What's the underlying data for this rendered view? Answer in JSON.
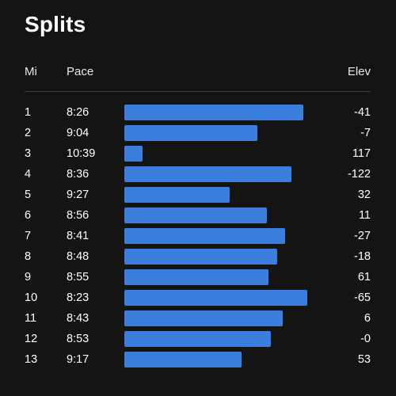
{
  "title": "Splits",
  "headers": {
    "mi": "Mi",
    "pace": "Pace",
    "elev": "Elev"
  },
  "bar_color": "#3a7fdd",
  "splits": [
    {
      "mi": "1",
      "pace": "8:26",
      "elev": "-41",
      "pace_seconds": 506
    },
    {
      "mi": "2",
      "pace": "9:04",
      "elev": "-7",
      "pace_seconds": 544
    },
    {
      "mi": "3",
      "pace": "10:39",
      "elev": "117",
      "pace_seconds": 639
    },
    {
      "mi": "4",
      "pace": "8:36",
      "elev": "-122",
      "pace_seconds": 516
    },
    {
      "mi": "5",
      "pace": "9:27",
      "elev": "32",
      "pace_seconds": 567
    },
    {
      "mi": "6",
      "pace": "8:56",
      "elev": "11",
      "pace_seconds": 536
    },
    {
      "mi": "7",
      "pace": "8:41",
      "elev": "-27",
      "pace_seconds": 521
    },
    {
      "mi": "8",
      "pace": "8:48",
      "elev": "-18",
      "pace_seconds": 528
    },
    {
      "mi": "9",
      "pace": "8:55",
      "elev": "61",
      "pace_seconds": 535
    },
    {
      "mi": "10",
      "pace": "8:23",
      "elev": "-65",
      "pace_seconds": 503
    },
    {
      "mi": "11",
      "pace": "8:43",
      "elev": "6",
      "pace_seconds": 523
    },
    {
      "mi": "12",
      "pace": "8:53",
      "elev": "-0",
      "pace_seconds": 533
    },
    {
      "mi": "13",
      "pace": "9:17",
      "elev": "53",
      "pace_seconds": 557
    }
  ]
}
